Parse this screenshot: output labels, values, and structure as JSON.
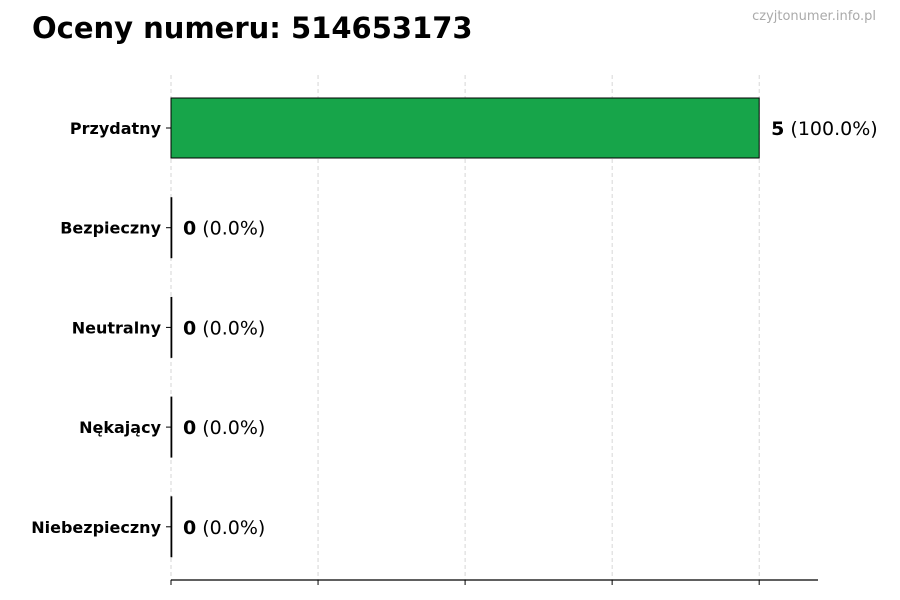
{
  "chart_data": {
    "type": "bar",
    "orientation": "horizontal",
    "title": "Oceny numeru: 514653173",
    "watermark": "czyjtonumer.info.pl",
    "categories": [
      "Przydatny",
      "Bezpieczny",
      "Neutralny",
      "Nękający",
      "Niebezpieczny"
    ],
    "values": [
      5,
      0,
      0,
      0,
      0
    ],
    "data_labels": [
      {
        "count": "5",
        "percent": "(100.0%)"
      },
      {
        "count": "0",
        "percent": "(0.0%)"
      },
      {
        "count": "0",
        "percent": "(0.0%)"
      },
      {
        "count": "0",
        "percent": "(0.0%)"
      },
      {
        "count": "0",
        "percent": "(0.0%)"
      }
    ],
    "xlim": [
      0,
      5.5
    ],
    "x_ticks": [
      0,
      1.25,
      2.5,
      3.75,
      5
    ],
    "x_tick_labels_shown": false,
    "grid": "x dashed",
    "xlabel": "",
    "ylabel": "",
    "bar_color": "#17a54a",
    "bar_edge_color": "#000000"
  }
}
